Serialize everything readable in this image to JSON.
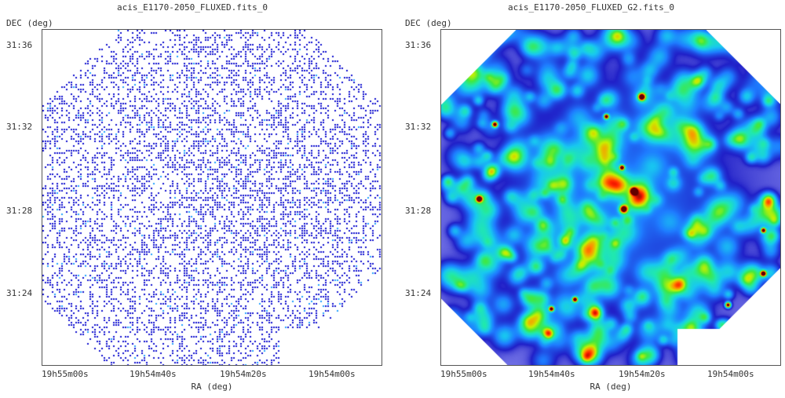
{
  "panels": [
    {
      "title": "acis_E1170-2050_FLUXED.fits_0",
      "y_axis_label": "DEC (deg)",
      "x_axis_label": "RA (deg)",
      "y_ticks": [
        "31:36",
        "31:32",
        "31:28",
        "31:24"
      ],
      "x_ticks": [
        "19h55m00s",
        "19h54m40s",
        "19h54m20s",
        "19h54m00s"
      ],
      "image": "raw-counts"
    },
    {
      "title": "acis_E1170-2050_FLUXED_G2.fits_0",
      "y_axis_label": "DEC (deg)",
      "x_axis_label": "RA (deg)",
      "y_ticks": [
        "31:36",
        "31:32",
        "31:28",
        "31:24"
      ],
      "x_ticks": [
        "19h55m00s",
        "19h54m40s",
        "19h54m20s",
        "19h54m00s"
      ],
      "image": "smoothed-gaussian"
    }
  ],
  "colors": {
    "background": "#ffffff",
    "frame": "#555555",
    "pixel_low": "#1010d0",
    "pixel_mid": "#20a0ff",
    "smooth_ramp": [
      "#ffffff",
      "#b8b8ff",
      "#2020c8",
      "#1e7cff",
      "#18c8f0",
      "#20e8b0",
      "#40e840",
      "#c8f000",
      "#ff9000",
      "#ff2000",
      "#600000"
    ]
  }
}
